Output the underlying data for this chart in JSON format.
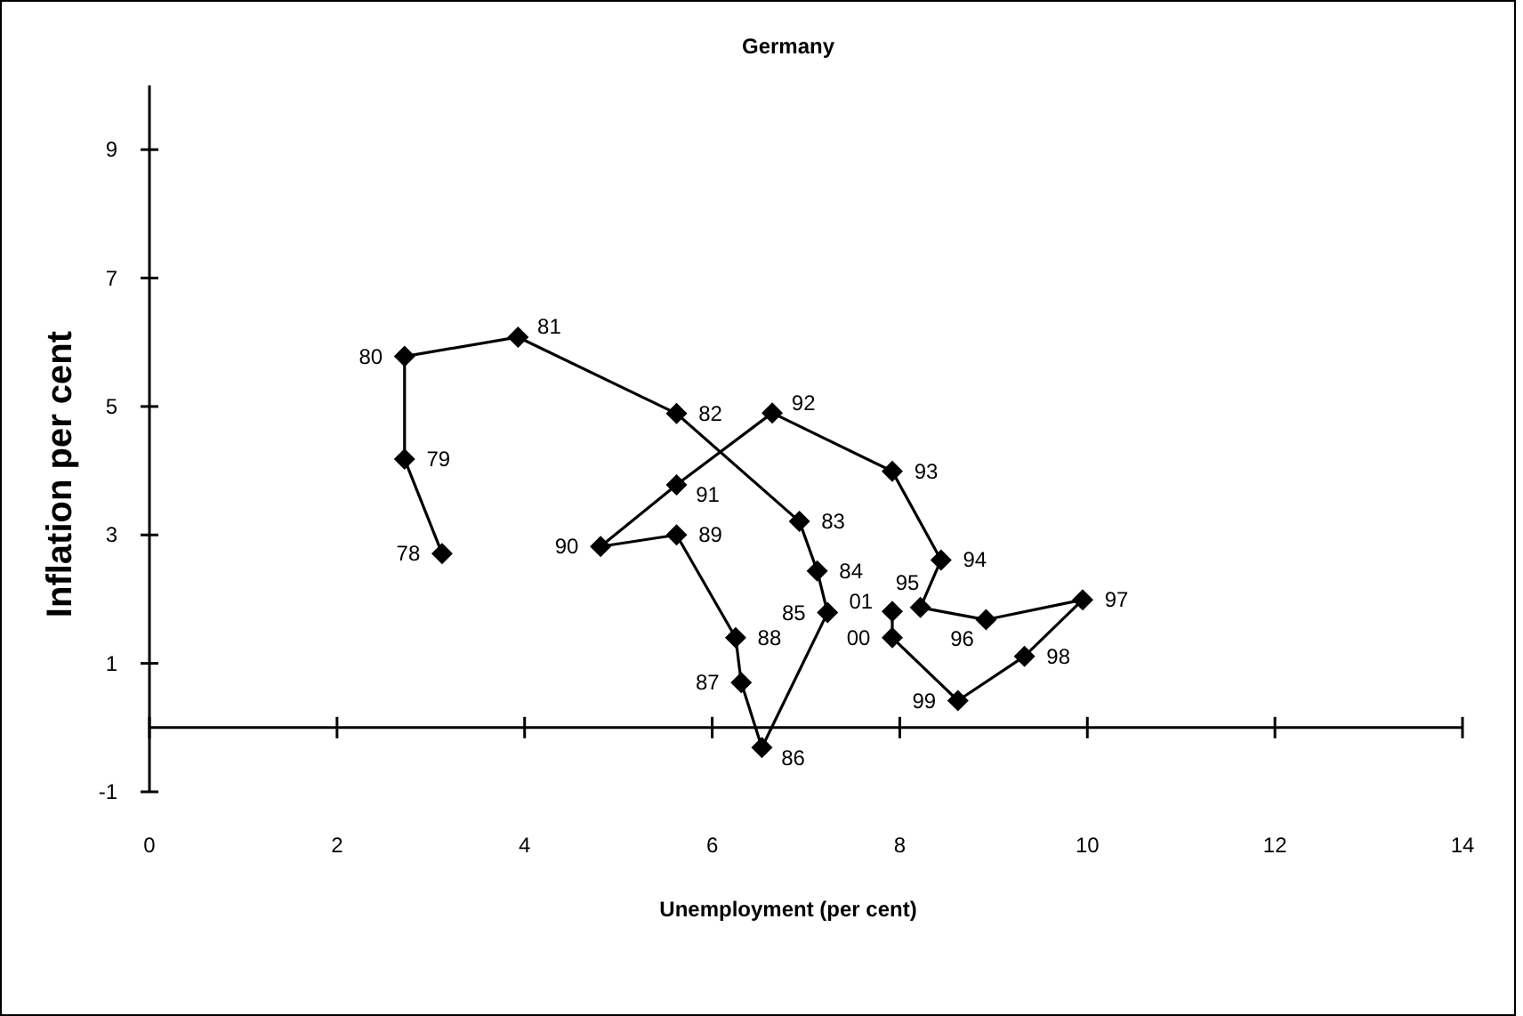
{
  "chart_data": {
    "type": "line",
    "title": "Germany",
    "xlabel": "Unemployment (per cent)",
    "ylabel": "Inflation per cent",
    "marker": "diamond",
    "line_style": "solid",
    "grid": false,
    "xlim": [
      0,
      14
    ],
    "xticks": [
      0,
      2,
      4,
      6,
      8,
      10,
      12,
      14
    ],
    "ylim": [
      -1,
      10
    ],
    "yticks": [
      -1,
      1,
      3,
      5,
      7,
      9
    ],
    "series": [
      {
        "color": "#000000",
        "x": [
          3.12,
          2.72,
          2.72,
          3.93,
          5.62,
          6.93,
          7.12,
          7.23,
          6.53,
          6.31,
          6.25,
          5.62,
          4.81,
          5.62,
          6.64,
          7.92,
          8.44,
          8.22,
          8.92,
          9.95,
          9.33,
          8.62,
          7.92,
          7.92
        ],
        "values": [
          2.71,
          4.18,
          5.78,
          6.08,
          4.89,
          3.21,
          2.44,
          1.79,
          -0.31,
          0.7,
          1.4,
          3.0,
          2.82,
          3.78,
          4.9,
          3.99,
          2.61,
          1.87,
          1.68,
          1.99,
          1.11,
          0.42,
          1.4,
          1.81
        ]
      }
    ],
    "annotations": [
      {
        "text": "78",
        "x": 3.12,
        "y": 2.71
      },
      {
        "text": "79",
        "x": 2.72,
        "y": 4.18
      },
      {
        "text": "80",
        "x": 2.72,
        "y": 5.78
      },
      {
        "text": "81",
        "x": 3.93,
        "y": 6.08
      },
      {
        "text": "82",
        "x": 5.62,
        "y": 4.89
      },
      {
        "text": "83",
        "x": 6.93,
        "y": 3.21
      },
      {
        "text": "84",
        "x": 7.12,
        "y": 2.44
      },
      {
        "text": "85",
        "x": 7.23,
        "y": 1.79
      },
      {
        "text": "86",
        "x": 6.53,
        "y": -0.31
      },
      {
        "text": "87",
        "x": 6.31,
        "y": 0.7
      },
      {
        "text": "88",
        "x": 6.25,
        "y": 1.4
      },
      {
        "text": "89",
        "x": 5.62,
        "y": 3.0
      },
      {
        "text": "90",
        "x": 4.81,
        "y": 2.82
      },
      {
        "text": "91",
        "x": 5.62,
        "y": 3.78
      },
      {
        "text": "92",
        "x": 6.64,
        "y": 4.9
      },
      {
        "text": "93",
        "x": 7.92,
        "y": 3.99
      },
      {
        "text": "94",
        "x": 8.44,
        "y": 2.61
      },
      {
        "text": "95",
        "x": 8.22,
        "y": 1.87
      },
      {
        "text": "96",
        "x": 8.92,
        "y": 1.68
      },
      {
        "text": "97",
        "x": 9.95,
        "y": 1.99
      },
      {
        "text": "98",
        "x": 9.33,
        "y": 1.11
      },
      {
        "text": "99",
        "x": 8.62,
        "y": 0.42
      },
      {
        "text": "00",
        "x": 7.92,
        "y": 1.4
      },
      {
        "text": "01",
        "x": 7.92,
        "y": 1.81
      }
    ]
  }
}
